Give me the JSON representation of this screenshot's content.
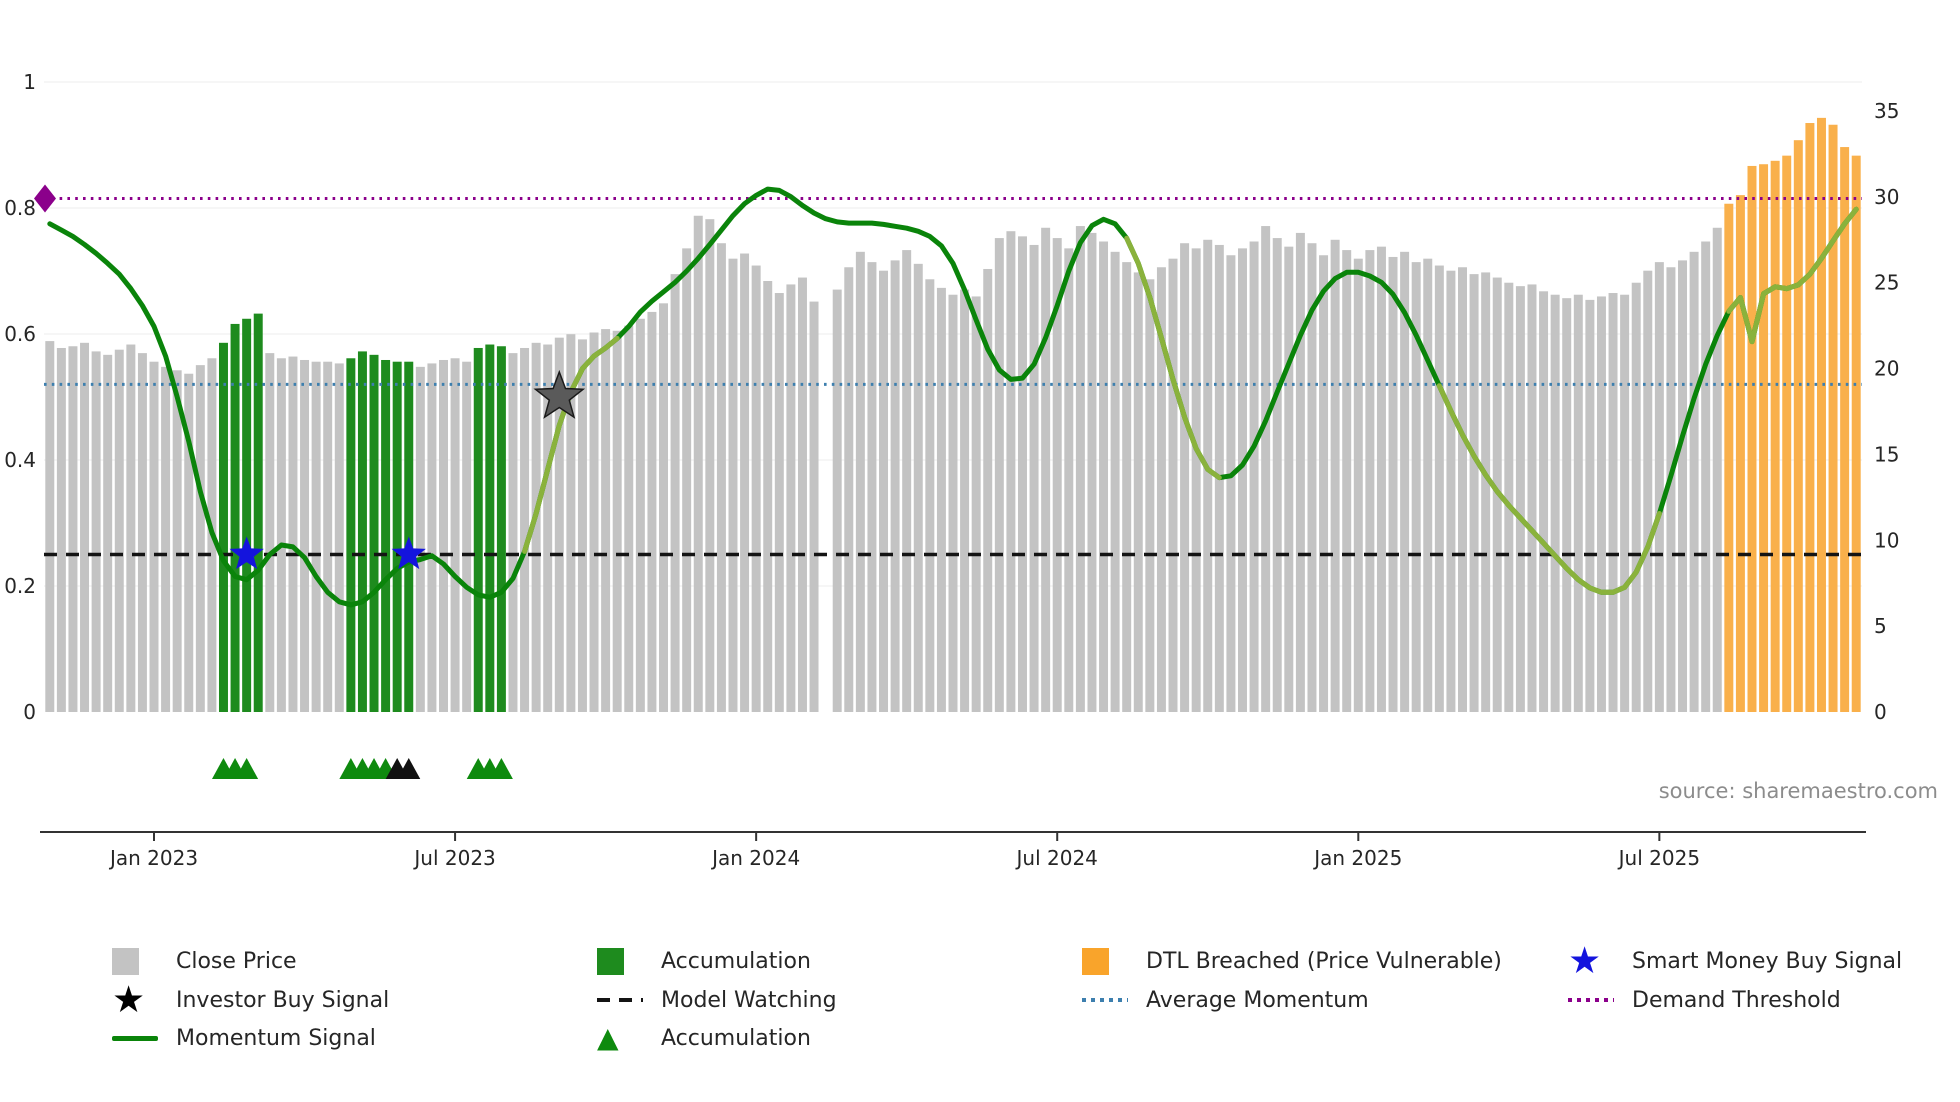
{
  "source_note": "source: sharemaestro.com",
  "colors": {
    "close_bar": "#c3c3c3",
    "accum_bar": "#1e8b1e",
    "accum_marker": "#0e8a0e",
    "dtl_bar": "#f9b04b",
    "dtl_bar_legend": "#f9a42b",
    "momentum": "#0a840a",
    "momentum_light": "#8ab23c",
    "average_momentum": "#3d7fae",
    "demand_threshold": "#8b008b",
    "model_watching": "#141414",
    "smart_money": "#1414dd",
    "investor_star": "#5a5a5a",
    "investor_star_legend": "#000000",
    "axis_text": "#262626",
    "source_text": "#8c8c8c"
  },
  "chart_data": {
    "type": "bar",
    "title": "",
    "x_axis": {
      "tick_labels": [
        "Jan 2023",
        "Jul 2023",
        "Jan 2024",
        "Jul 2024",
        "Jan 2025",
        "Jul 2025"
      ],
      "tick_indices": [
        9,
        35,
        61,
        87,
        113,
        139
      ]
    },
    "left_axis": {
      "ticks": [
        0,
        0.2,
        0.4,
        0.6,
        0.8,
        1
      ],
      "range": [
        0,
        1
      ]
    },
    "right_axis": {
      "ticks": [
        0,
        5,
        10,
        15,
        20,
        25,
        30,
        35
      ],
      "range": [
        0,
        35
      ]
    },
    "bars": {
      "name": "Close Price (weekly)",
      "values": [
        21.6,
        21.2,
        21.3,
        21.5,
        21.0,
        20.8,
        21.1,
        21.4,
        20.9,
        20.4,
        20.1,
        19.9,
        19.7,
        20.2,
        20.6,
        21.5,
        22.6,
        22.9,
        23.2,
        20.9,
        20.6,
        20.7,
        20.5,
        20.4,
        20.4,
        20.3,
        20.6,
        21.0,
        20.8,
        20.5,
        20.4,
        20.4,
        20.1,
        20.3,
        20.5,
        20.6,
        20.4,
        21.2,
        21.4,
        21.3,
        20.9,
        21.2,
        21.5,
        21.4,
        21.8,
        22.0,
        21.7,
        22.1,
        22.3,
        22.2,
        22.5,
        22.9,
        23.3,
        23.8,
        25.5,
        27.0,
        28.9,
        28.7,
        27.3,
        26.4,
        26.7,
        26.0,
        25.1,
        24.4,
        24.9,
        25.3,
        23.9,
        null,
        24.6,
        25.9,
        26.8,
        26.2,
        25.7,
        26.3,
        26.9,
        26.1,
        25.2,
        24.7,
        24.3,
        24.6,
        24.2,
        25.8,
        27.6,
        28.0,
        27.7,
        27.2,
        28.2,
        27.6,
        27.0,
        28.3,
        27.9,
        27.4,
        26.8,
        26.2,
        25.6,
        25.2,
        25.9,
        26.4,
        27.3,
        27.0,
        27.5,
        27.2,
        26.6,
        27.0,
        27.4,
        28.3,
        27.6,
        27.1,
        27.9,
        27.3,
        26.6,
        27.5,
        26.9,
        26.4,
        26.9,
        27.1,
        26.5,
        26.8,
        26.2,
        26.4,
        26.0,
        25.7,
        25.9,
        25.5,
        25.6,
        25.3,
        25.0,
        24.8,
        24.9,
        24.5,
        24.3,
        24.1,
        24.3,
        24.0,
        24.2,
        24.4,
        24.3,
        25.0,
        25.7,
        26.2,
        25.9,
        26.3,
        26.8,
        27.4,
        28.2,
        29.6,
        30.1,
        31.8,
        31.9,
        32.1,
        32.4,
        33.3,
        34.3,
        34.6,
        34.2,
        32.9,
        32.4
      ],
      "accumulation_indices": [
        15,
        16,
        17,
        18,
        26,
        27,
        28,
        29,
        30,
        31,
        37,
        38,
        39
      ],
      "dtl_breached_from_index": 145,
      "gap_indices": [
        67
      ]
    },
    "momentum": {
      "name": "Momentum Signal",
      "values": [
        0.775,
        0.765,
        0.755,
        0.742,
        0.728,
        0.712,
        0.695,
        0.672,
        0.645,
        0.612,
        0.565,
        0.5,
        0.43,
        0.35,
        0.285,
        0.24,
        0.215,
        0.21,
        0.225,
        0.25,
        0.265,
        0.262,
        0.245,
        0.215,
        0.19,
        0.175,
        0.17,
        0.175,
        0.19,
        0.21,
        0.228,
        0.238,
        0.242,
        0.248,
        0.235,
        0.215,
        0.198,
        0.186,
        0.182,
        0.19,
        0.212,
        0.255,
        0.315,
        0.385,
        0.455,
        0.508,
        0.545,
        0.565,
        0.578,
        0.593,
        0.612,
        0.635,
        0.652,
        0.667,
        0.682,
        0.7,
        0.72,
        0.742,
        0.765,
        0.788,
        0.807,
        0.82,
        0.83,
        0.828,
        0.818,
        0.804,
        0.792,
        0.783,
        0.778,
        0.776,
        0.776,
        0.776,
        0.774,
        0.771,
        0.768,
        0.763,
        0.755,
        0.74,
        0.712,
        0.67,
        0.622,
        0.576,
        0.543,
        0.528,
        0.53,
        0.552,
        0.594,
        0.645,
        0.7,
        0.745,
        0.772,
        0.782,
        0.775,
        0.752,
        0.712,
        0.658,
        0.594,
        0.528,
        0.468,
        0.418,
        0.385,
        0.372,
        0.375,
        0.392,
        0.422,
        0.462,
        0.508,
        0.553,
        0.598,
        0.638,
        0.668,
        0.688,
        0.698,
        0.698,
        0.692,
        0.682,
        0.663,
        0.634,
        0.598,
        0.558,
        0.518,
        0.478,
        0.44,
        0.406,
        0.376,
        0.35,
        0.328,
        0.308,
        0.288,
        0.268,
        0.248,
        0.228,
        0.21,
        0.197,
        0.19,
        0.19,
        0.198,
        0.222,
        0.262,
        0.315,
        0.375,
        0.438,
        0.498,
        0.552,
        0.598,
        0.636,
        0.658,
        0.588,
        0.664,
        0.675,
        0.672,
        0.678,
        0.695,
        0.72,
        0.748,
        0.775,
        0.798
      ],
      "light_segments": [
        [
          41,
          49
        ],
        [
          93,
          101
        ],
        [
          120,
          139
        ],
        [
          145,
          156
        ]
      ]
    },
    "hlines": [
      {
        "name": "Demand Threshold",
        "value": 0.815,
        "axis": "left",
        "style": "dotted",
        "color_key": "demand_threshold"
      },
      {
        "name": "Average Momentum",
        "value": 0.52,
        "axis": "left",
        "style": "dotted",
        "color_key": "average_momentum"
      },
      {
        "name": "Model Watching",
        "value": 0.25,
        "axis": "left",
        "style": "dashed",
        "color_key": "model_watching"
      }
    ],
    "markers": {
      "investor_buy_signals": [
        {
          "index": 44,
          "momentum": 0.5
        }
      ],
      "smart_money_buy_signals": [
        {
          "index": 17,
          "momentum": 0.25
        },
        {
          "index": 31,
          "momentum": 0.25
        }
      ],
      "accumulation_triangles": [
        15,
        16,
        17,
        26,
        27,
        28,
        29,
        37,
        38,
        39
      ],
      "black_triangles": [
        30,
        31
      ],
      "demand_threshold_marker": {
        "index": 0,
        "momentum": 0.815
      }
    }
  },
  "legend": {
    "columns": [
      {
        "items": [
          {
            "name": "close-price",
            "icon": "square",
            "color_key": "close_bar",
            "label": "Close Price"
          },
          {
            "name": "investor-buy-signal",
            "icon": "star",
            "color_key": "investor_star_legend",
            "label": "Investor Buy Signal"
          },
          {
            "name": "momentum-signal",
            "icon": "line-solid",
            "color_key": "momentum",
            "label": "Momentum Signal"
          }
        ]
      },
      {
        "items": [
          {
            "name": "accumulation-bars",
            "icon": "square",
            "color_key": "accum_bar",
            "label": "Accumulation"
          },
          {
            "name": "model-watching",
            "icon": "line-dashed",
            "color_key": "model_watching",
            "label": "Model Watching"
          },
          {
            "name": "accumulation-markers",
            "icon": "triangle",
            "color_key": "accum_marker",
            "label": "Accumulation"
          }
        ]
      },
      {
        "items": [
          {
            "name": "dtl-breached",
            "icon": "square",
            "color_key": "dtl_bar_legend",
            "label": "DTL Breached (Price Vulnerable)"
          },
          {
            "name": "average-momentum",
            "icon": "line-dotted",
            "color_key": "average_momentum",
            "label": "Average Momentum"
          }
        ]
      },
      {
        "items": [
          {
            "name": "smart-money-buy-signal",
            "icon": "star",
            "color_key": "smart_money",
            "label": "Smart Money Buy Signal"
          },
          {
            "name": "demand-threshold",
            "icon": "line-dotted",
            "color_key": "demand_threshold",
            "label": "Demand Threshold"
          }
        ]
      }
    ]
  }
}
